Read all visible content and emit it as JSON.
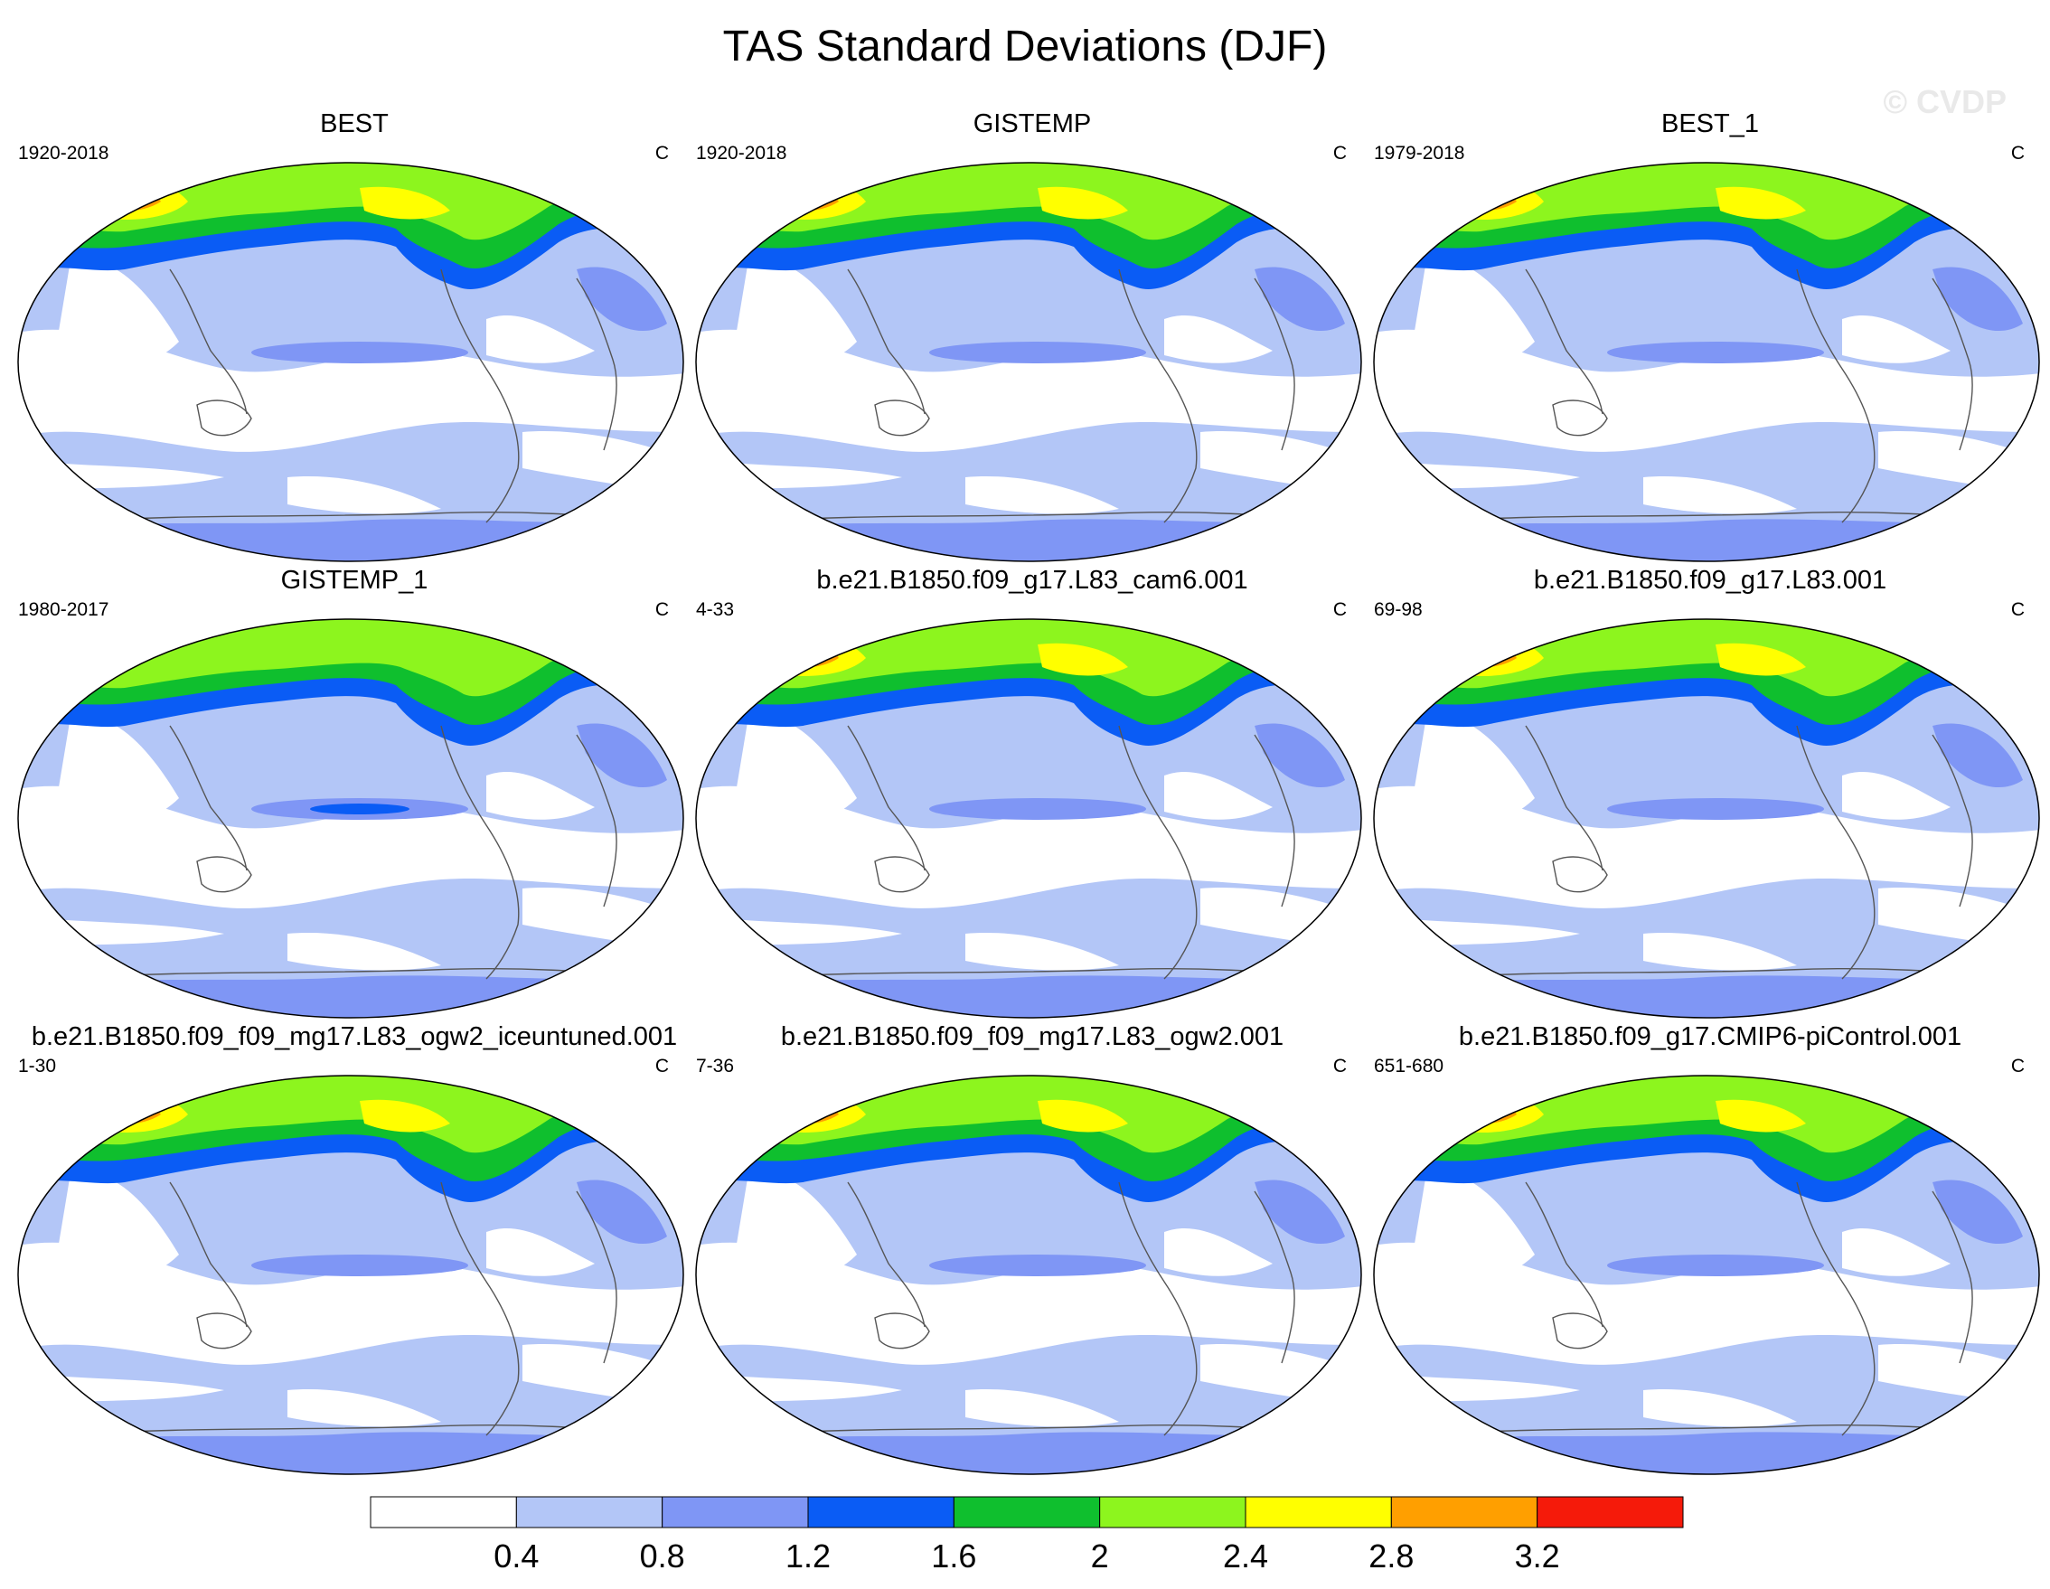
{
  "figure": {
    "title": "TAS Standard Deviations (DJF)",
    "watermark": "© CVDP"
  },
  "panels": [
    {
      "title": "BEST",
      "period": "1920-2018",
      "units": "C"
    },
    {
      "title": "GISTEMP",
      "period": "1920-2018",
      "units": "C"
    },
    {
      "title": "BEST_1",
      "period": "1979-2018",
      "units": "C"
    },
    {
      "title": "GISTEMP_1",
      "period": "1980-2017",
      "units": "C"
    },
    {
      "title": "b.e21.B1850.f09_g17.L83_cam6.001",
      "period": "4-33",
      "units": "C"
    },
    {
      "title": "b.e21.B1850.f09_g17.L83.001",
      "period": "69-98",
      "units": "C"
    },
    {
      "title": "b.e21.B1850.f09_f09_mg17.L83_ogw2_iceuntuned.001",
      "period": "1-30",
      "units": "C"
    },
    {
      "title": "b.e21.B1850.f09_f09_mg17.L83_ogw2.001",
      "period": "7-36",
      "units": "C"
    },
    {
      "title": "b.e21.B1850.f09_g17.CMIP6-piControl.001",
      "period": "651-680",
      "units": "C"
    }
  ],
  "colorbar": {
    "levels": [
      "0.4",
      "0.8",
      "1.2",
      "1.6",
      "2",
      "2.4",
      "2.8",
      "3.2"
    ],
    "colors": [
      "#ffffff",
      "#b3c6f7",
      "#7f96f5",
      "#0a5cf5",
      "#0fbf2e",
      "#8df51e",
      "#ffff00",
      "#ff9f00",
      "#f51a0a"
    ]
  },
  "map_palette": {
    "ocean_low": "#b3c6f7",
    "land_low": "#ffffff",
    "mid": "#7f96f5",
    "high_1": "#0a5cf5",
    "high_2": "#0fbf2e",
    "high_3": "#8df51e",
    "high_4": "#ffff00",
    "high_5": "#ff9f00",
    "high_6": "#f51a0a",
    "coast": "#555555"
  }
}
